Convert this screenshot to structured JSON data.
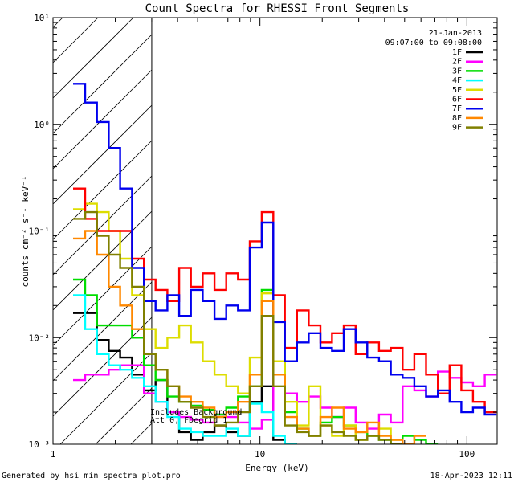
{
  "chart_data": {
    "type": "line",
    "title": "Count Spectra for RHESSI Front Segments",
    "xlabel": "Energy (keV)",
    "ylabel": "counts cm⁻² s⁻¹ keV⁻¹",
    "xscale": "log",
    "yscale": "log",
    "xlim": [
      1,
      140
    ],
    "ylim": [
      0.001,
      10
    ],
    "x_ticks": [
      {
        "value": 1,
        "label": "1"
      },
      {
        "value": 10,
        "label": "10"
      },
      {
        "value": 100,
        "label": "100"
      }
    ],
    "y_ticks": [
      {
        "value": 0.001,
        "label": "10⁻³"
      },
      {
        "value": 0.01,
        "label": "10⁻²"
      },
      {
        "value": 0.1,
        "label": "10⁻¹"
      },
      {
        "value": 1,
        "label": "10⁰"
      },
      {
        "value": 10,
        "label": "10¹"
      }
    ],
    "date": "21-Jan-2013",
    "time_range": "09:07:00 to 09:08:00",
    "legend_position": "top-right",
    "hatched_region_max_energy_keV": 3,
    "annotations": [
      "Includes Background",
      "Att 0, FDegrid 1"
    ],
    "footer_left": "Generated by hsi_min_spectra_plot.pro",
    "footer_right": "18-Apr-2023 12:11",
    "series": [
      {
        "name": "1F",
        "color": "#000000",
        "edges": [
          1.25,
          1.43,
          1.63,
          1.86,
          2.11,
          2.41,
          2.75,
          3.13,
          3.57,
          4.07,
          4.64,
          5.29,
          6.03,
          6.87,
          7.83,
          8.93,
          10.2,
          11.6,
          13.2,
          15.1
        ],
        "values": [
          0.017,
          0.017,
          0.0095,
          0.0075,
          0.0065,
          0.0045,
          0.0032,
          0.004,
          0.002,
          0.0013,
          0.0011,
          0.0013,
          0.0015,
          0.0013,
          0.0012,
          0.0025,
          0.0035,
          0.0011,
          0.001
        ]
      },
      {
        "name": "2F",
        "color": "#ff00ff",
        "edges": [
          1.25,
          1.43,
          1.63,
          1.86,
          2.11,
          2.41,
          2.75,
          3.13,
          3.57,
          4.07,
          4.64,
          5.29,
          6.03,
          6.87,
          7.83,
          8.93,
          10.2,
          11.6,
          13.2,
          15.1,
          17.2,
          19.6,
          22.3,
          25.4,
          29,
          33,
          37.6,
          42.9,
          48.9,
          55.7,
          63.5,
          72.4,
          82.5,
          94,
          107,
          122,
          139
        ],
        "values": [
          0.004,
          0.0045,
          0.0045,
          0.005,
          0.0055,
          0.0055,
          0.003,
          0.0025,
          0.002,
          0.0018,
          0.0017,
          0.0016,
          0.0019,
          0.0018,
          0.0016,
          0.0014,
          0.0017,
          0.0045,
          0.003,
          0.0025,
          0.0028,
          0.0022,
          0.0018,
          0.0022,
          0.0016,
          0.0014,
          0.0019,
          0.0016,
          0.0035,
          0.0032,
          0.0028,
          0.0048,
          0.0042,
          0.0038,
          0.0035,
          0.0045
        ]
      },
      {
        "name": "3F",
        "color": "#00dd00",
        "edges": [
          1.25,
          1.43,
          1.63,
          1.86,
          2.11,
          2.41,
          2.75,
          3.13,
          3.57,
          4.07,
          4.64,
          5.29,
          6.03,
          6.87,
          7.83,
          8.93,
          10.2,
          11.6,
          13.2,
          15.1,
          17.2,
          19.6,
          22.3,
          25.4,
          29,
          33,
          37.6,
          42.9,
          48.9,
          55.7,
          63.5,
          72.4
        ],
        "values": [
          0.035,
          0.025,
          0.013,
          0.013,
          0.013,
          0.01,
          0.0055,
          0.004,
          0.0028,
          0.0025,
          0.0023,
          0.0021,
          0.0019,
          0.0022,
          0.0028,
          0.0035,
          0.028,
          0.006,
          0.002,
          0.0014,
          0.0012,
          0.0016,
          0.0018,
          0.0015,
          0.0013,
          0.0012,
          0.0011,
          0.001,
          0.0012,
          0.0011,
          0.001
        ]
      },
      {
        "name": "4F",
        "color": "#00ffff",
        "edges": [
          1.25,
          1.43,
          1.63,
          1.86,
          2.11,
          2.41,
          2.75,
          3.13,
          3.57,
          4.07,
          4.64,
          5.29,
          6.03,
          6.87,
          7.83,
          8.93,
          10.2,
          11.6,
          13.2,
          15.1
        ],
        "values": [
          0.025,
          0.012,
          0.007,
          0.0055,
          0.005,
          0.0042,
          0.0035,
          0.0025,
          0.0018,
          0.0014,
          0.0013,
          0.0012,
          0.0012,
          0.0014,
          0.0012,
          0.0024,
          0.002,
          0.0012,
          0.001
        ]
      },
      {
        "name": "5F",
        "color": "#dddd00",
        "edges": [
          1.25,
          1.43,
          1.63,
          1.86,
          2.11,
          2.41,
          2.75,
          3.13,
          3.57,
          4.07,
          4.64,
          5.29,
          6.03,
          6.87,
          7.83,
          8.93,
          10.2,
          11.6,
          13.2,
          15.1,
          17.2,
          19.6,
          22.3,
          25.4,
          29,
          33,
          37.6,
          42.9,
          48.9,
          55.7
        ],
        "values": [
          0.16,
          0.18,
          0.15,
          0.1,
          0.055,
          0.025,
          0.012,
          0.008,
          0.01,
          0.013,
          0.009,
          0.006,
          0.0045,
          0.0035,
          0.003,
          0.0065,
          0.026,
          0.006,
          0.0025,
          0.0015,
          0.0035,
          0.0015,
          0.0012,
          0.0015,
          0.0011,
          0.0012,
          0.0014,
          0.0011,
          0.001
        ]
      },
      {
        "name": "6F",
        "color": "#ff0000",
        "edges": [
          1.25,
          1.43,
          1.63,
          1.86,
          2.11,
          2.41,
          2.75,
          3.13,
          3.57,
          4.07,
          4.64,
          5.29,
          6.03,
          6.87,
          7.83,
          8.93,
          10.2,
          11.6,
          13.2,
          15.1,
          17.2,
          19.6,
          22.3,
          25.4,
          29,
          33,
          37.6,
          42.9,
          48.9,
          55.7,
          63.5,
          72.4,
          82.5,
          94,
          107,
          122,
          139
        ],
        "values": [
          0.25,
          0.13,
          0.1,
          0.1,
          0.1,
          0.055,
          0.035,
          0.028,
          0.022,
          0.045,
          0.03,
          0.04,
          0.028,
          0.04,
          0.035,
          0.08,
          0.15,
          0.025,
          0.008,
          0.018,
          0.013,
          0.009,
          0.011,
          0.013,
          0.007,
          0.009,
          0.0075,
          0.008,
          0.005,
          0.007,
          0.0045,
          0.003,
          0.0055,
          0.0032,
          0.0025,
          0.002
        ]
      },
      {
        "name": "7F",
        "color": "#0000ee",
        "edges": [
          1.25,
          1.43,
          1.63,
          1.86,
          2.11,
          2.41,
          2.75,
          3.13,
          3.57,
          4.07,
          4.64,
          5.29,
          6.03,
          6.87,
          7.83,
          8.93,
          10.2,
          11.6,
          13.2,
          15.1,
          17.2,
          19.6,
          22.3,
          25.4,
          29,
          33,
          37.6,
          42.9,
          48.9,
          55.7,
          63.5,
          72.4,
          82.5,
          94,
          107,
          122,
          139
        ],
        "values": [
          2.4,
          1.6,
          1.05,
          0.6,
          0.25,
          0.045,
          0.022,
          0.018,
          0.025,
          0.016,
          0.028,
          0.022,
          0.015,
          0.02,
          0.018,
          0.07,
          0.12,
          0.014,
          0.006,
          0.009,
          0.011,
          0.008,
          0.0075,
          0.012,
          0.009,
          0.0065,
          0.006,
          0.0045,
          0.0042,
          0.0035,
          0.0028,
          0.0032,
          0.0025,
          0.002,
          0.0022,
          0.0019
        ]
      },
      {
        "name": "8F",
        "color": "#ff8800",
        "edges": [
          1.25,
          1.43,
          1.63,
          1.86,
          2.11,
          2.41,
          2.75,
          3.13,
          3.57,
          4.07,
          4.64,
          5.29,
          6.03,
          6.87,
          7.83,
          8.93,
          10.2,
          11.6,
          13.2,
          15.1,
          17.2,
          19.6,
          22.3,
          25.4,
          29,
          33,
          37.6,
          42.9,
          48.9,
          55.7,
          63.5
        ],
        "values": [
          0.085,
          0.1,
          0.06,
          0.03,
          0.02,
          0.012,
          0.007,
          0.005,
          0.0035,
          0.0028,
          0.0025,
          0.0022,
          0.0018,
          0.002,
          0.0025,
          0.0045,
          0.022,
          0.0045,
          0.0018,
          0.0014,
          0.0012,
          0.0018,
          0.0022,
          0.0014,
          0.0013,
          0.0016,
          0.0012,
          0.0011,
          0.001,
          0.0012
        ]
      },
      {
        "name": "9F",
        "color": "#808000",
        "edges": [
          1.25,
          1.43,
          1.63,
          1.86,
          2.11,
          2.41,
          2.75,
          3.13,
          3.57,
          4.07,
          4.64,
          5.29,
          6.03,
          6.87,
          7.83,
          8.93,
          10.2,
          11.6,
          13.2,
          15.1,
          17.2,
          19.6,
          22.3,
          25.4,
          29,
          33,
          37.6,
          42.9,
          48.9
        ],
        "values": [
          0.13,
          0.15,
          0.09,
          0.06,
          0.045,
          0.03,
          0.007,
          0.005,
          0.0035,
          0.0025,
          0.0022,
          0.0018,
          0.0015,
          0.0016,
          0.002,
          0.0035,
          0.016,
          0.0035,
          0.0015,
          0.0013,
          0.0012,
          0.0015,
          0.0013,
          0.0012,
          0.0011,
          0.0012,
          0.0011,
          0.001
        ]
      }
    ]
  }
}
